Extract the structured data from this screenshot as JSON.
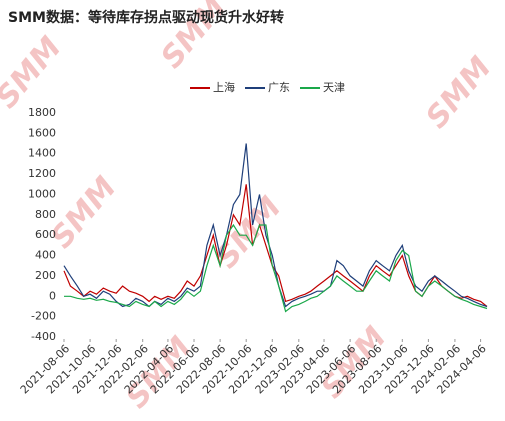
{
  "chart_data": {
    "type": "line",
    "title": "SMM数据：等待库存拐点驱动现货升水好转",
    "watermark": "SMM",
    "x": [
      "2021-08-06",
      "2021-08-21",
      "2021-09-06",
      "2021-09-21",
      "2021-10-06",
      "2021-10-21",
      "2021-11-06",
      "2021-11-21",
      "2021-12-06",
      "2021-12-21",
      "2022-01-06",
      "2022-01-21",
      "2022-02-06",
      "2022-02-21",
      "2022-03-06",
      "2022-03-21",
      "2022-04-06",
      "2022-04-21",
      "2022-05-06",
      "2022-05-21",
      "2022-06-06",
      "2022-06-21",
      "2022-07-06",
      "2022-07-21",
      "2022-08-06",
      "2022-08-21",
      "2022-09-06",
      "2022-09-21",
      "2022-10-06",
      "2022-10-21",
      "2022-11-06",
      "2022-11-21",
      "2022-12-06",
      "2022-12-21",
      "2023-01-06",
      "2023-01-21",
      "2023-02-06",
      "2023-02-21",
      "2023-03-06",
      "2023-03-21",
      "2023-04-06",
      "2023-04-21",
      "2023-05-06",
      "2023-05-21",
      "2023-06-06",
      "2023-06-21",
      "2023-07-06",
      "2023-07-21",
      "2023-08-06",
      "2023-08-21",
      "2023-09-06",
      "2023-09-21",
      "2023-10-06",
      "2023-10-21",
      "2023-11-06",
      "2023-11-21",
      "2023-12-06",
      "2023-12-21",
      "2024-01-06",
      "2024-01-21",
      "2024-02-06",
      "2024-02-21",
      "2024-03-06",
      "2024-03-21",
      "2024-04-06",
      "2024-04-21"
    ],
    "series": [
      {
        "name": "上海",
        "color": "#c00000",
        "values": [
          250,
          100,
          50,
          0,
          50,
          20,
          80,
          50,
          30,
          100,
          50,
          30,
          0,
          -50,
          0,
          -30,
          0,
          -20,
          50,
          150,
          100,
          200,
          400,
          600,
          300,
          500,
          800,
          700,
          1100,
          500,
          700,
          500,
          300,
          200,
          -50,
          -30,
          0,
          20,
          50,
          100,
          150,
          200,
          250,
          200,
          150,
          100,
          50,
          200,
          300,
          250,
          200,
          300,
          400,
          200,
          50,
          0,
          100,
          200,
          100,
          50,
          0,
          -20,
          0,
          -30,
          -50,
          -100
        ]
      },
      {
        "name": "广东",
        "color": "#1f3f7a",
        "values": [
          300,
          200,
          100,
          0,
          20,
          -20,
          50,
          20,
          -50,
          -100,
          -80,
          -20,
          -50,
          -100,
          -50,
          -80,
          -20,
          -50,
          0,
          80,
          50,
          100,
          500,
          700,
          400,
          600,
          900,
          1000,
          1500,
          700,
          1000,
          600,
          400,
          100,
          -100,
          -50,
          -20,
          0,
          20,
          50,
          50,
          100,
          350,
          300,
          200,
          150,
          100,
          250,
          350,
          300,
          250,
          400,
          500,
          250,
          100,
          50,
          150,
          200,
          150,
          100,
          50,
          0,
          -20,
          -50,
          -80,
          -100
        ]
      },
      {
        "name": "天津",
        "color": "#1aa84a",
        "values": [
          0,
          0,
          -20,
          -30,
          -20,
          -40,
          -30,
          -50,
          -60,
          -80,
          -100,
          -50,
          -80,
          -100,
          -50,
          -100,
          -50,
          -80,
          -30,
          50,
          0,
          50,
          300,
          500,
          300,
          600,
          700,
          600,
          600,
          500,
          700,
          700,
          300,
          100,
          -150,
          -100,
          -80,
          -50,
          -20,
          0,
          50,
          100,
          200,
          150,
          100,
          50,
          50,
          150,
          250,
          200,
          150,
          350,
          450,
          400,
          50,
          0,
          100,
          150,
          100,
          50,
          0,
          -30,
          -50,
          -80,
          -100,
          -120
        ]
      }
    ],
    "xlim": [
      "2021-08-06",
      "2024-04-21"
    ],
    "xticks": [
      "2021-08-06",
      "2021-10-06",
      "2021-12-06",
      "2022-02-06",
      "2022-04-06",
      "2022-06-06",
      "2022-08-06",
      "2022-10-06",
      "2022-12-06",
      "2023-02-06",
      "2023-04-06",
      "2023-06-06",
      "2023-08-06",
      "2023-10-06",
      "2023-12-06",
      "2024-02-06",
      "2024-04-06"
    ],
    "ylim": [
      -400,
      1800
    ],
    "yticks": [
      -400,
      -200,
      0,
      200,
      400,
      600,
      800,
      1000,
      1200,
      1400,
      1600,
      1800
    ],
    "grid": false,
    "legend": "top"
  }
}
